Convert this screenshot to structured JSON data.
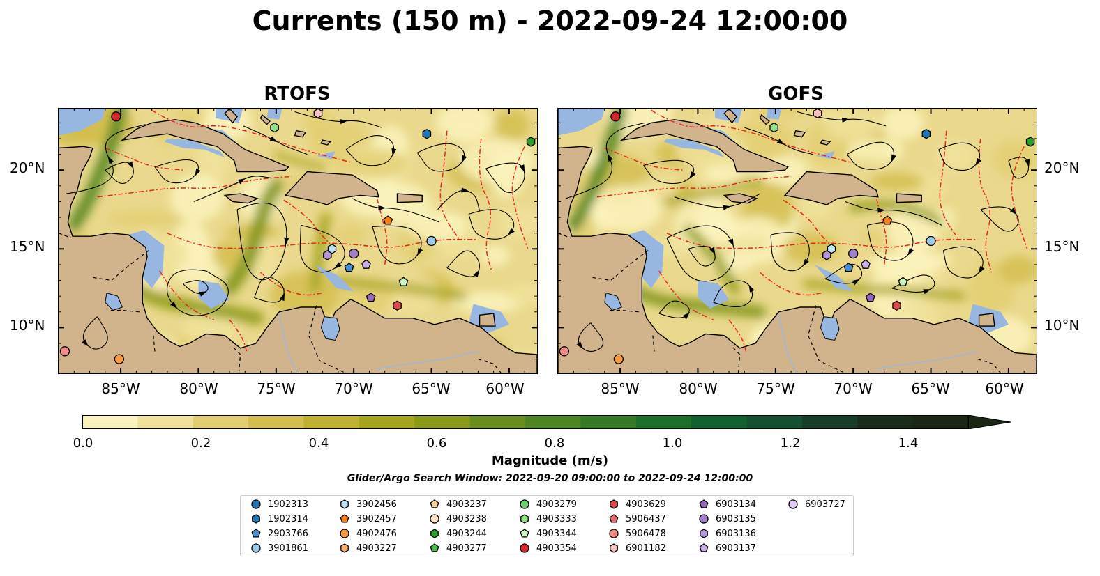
{
  "title": "Currents (150 m) - 2022-09-24 12:00:00",
  "panels": [
    {
      "title": "RTOFS",
      "variant": 0
    },
    {
      "title": "GOFS",
      "variant": 1
    }
  ],
  "lat_ticks": [
    "20°N",
    "15°N",
    "10°N"
  ],
  "lon_ticks": [
    "85°W",
    "80°W",
    "75°W",
    "70°W",
    "65°W",
    "60°W"
  ],
  "colorbar": {
    "label": "Magnitude (m/s)",
    "ticks": [
      "0.0",
      "0.2",
      "0.4",
      "0.6",
      "0.8",
      "1.0",
      "1.2",
      "1.4"
    ],
    "colors": [
      "#fbf3bd",
      "#f0e29a",
      "#e3cf72",
      "#d3be4f",
      "#bfb12f",
      "#a4a41d",
      "#89991a",
      "#6a8e1e",
      "#4f8422",
      "#347a25",
      "#1d6f2c",
      "#0f612e",
      "#145032",
      "#183d2b",
      "#1b2c1c",
      "#1c2617"
    ]
  },
  "search_window": "Glider/Argo Search Window: 2022-09-20 09:00:00 to 2022-09-24 12:00:00",
  "legend": [
    {
      "label": "1902313",
      "color": "#1f77b4",
      "marker": "circle"
    },
    {
      "label": "1902314",
      "color": "#1f77b4",
      "marker": "hexagon"
    },
    {
      "label": "2903766",
      "color": "#4b8fd0",
      "marker": "pentagon"
    },
    {
      "label": "3901861",
      "color": "#9ecae9",
      "marker": "circle"
    },
    {
      "label": "3902456",
      "color": "#bfe3f7",
      "marker": "hexagon"
    },
    {
      "label": "3902457",
      "color": "#ff7f0e",
      "marker": "pentagon"
    },
    {
      "label": "4902476",
      "color": "#fd9a3f",
      "marker": "circle"
    },
    {
      "label": "4903227",
      "color": "#ffb26b",
      "marker": "hexagon"
    },
    {
      "label": "4903237",
      "color": "#ffcf99",
      "marker": "pentagon"
    },
    {
      "label": "4903238",
      "color": "#ffe3c6",
      "marker": "circle"
    },
    {
      "label": "4903244",
      "color": "#2ca02c",
      "marker": "hexagon"
    },
    {
      "label": "4903277",
      "color": "#4cba4c",
      "marker": "pentagon"
    },
    {
      "label": "4903279",
      "color": "#6ccf6c",
      "marker": "circle"
    },
    {
      "label": "4903333",
      "color": "#98df8a",
      "marker": "hexagon"
    },
    {
      "label": "4903344",
      "color": "#c8f5c0",
      "marker": "pentagon"
    },
    {
      "label": "4903354",
      "color": "#d62728",
      "marker": "circle"
    },
    {
      "label": "4903629",
      "color": "#e04848",
      "marker": "hexagon"
    },
    {
      "label": "5906437",
      "color": "#ee6a6a",
      "marker": "pentagon"
    },
    {
      "label": "5906478",
      "color": "#f28b8b",
      "marker": "circle"
    },
    {
      "label": "6901182",
      "color": "#f8c0c0",
      "marker": "hexagon"
    },
    {
      "label": "6903134",
      "color": "#9467bd",
      "marker": "pentagon"
    },
    {
      "label": "6903135",
      "color": "#a17fc9",
      "marker": "circle"
    },
    {
      "label": "6903136",
      "color": "#b596da",
      "marker": "hexagon"
    },
    {
      "label": "6903137",
      "color": "#c9b0ea",
      "marker": "pentagon"
    },
    {
      "label": "6903727",
      "color": "#e2cdf6",
      "marker": "circle"
    }
  ],
  "floats": [
    {
      "id": "4903354",
      "lon": -85.3,
      "lat": 23.4
    },
    {
      "id": "6901182",
      "lon": -72.3,
      "lat": 23.6
    },
    {
      "id": "4903333",
      "lon": -75.1,
      "lat": 22.7
    },
    {
      "id": "1902314",
      "lon": -65.3,
      "lat": 22.3
    },
    {
      "id": "4903244",
      "lon": -58.6,
      "lat": 21.8
    },
    {
      "id": "3902457",
      "lon": -67.8,
      "lat": 16.8
    },
    {
      "id": "3901861",
      "lon": -65.0,
      "lat": 15.5
    },
    {
      "id": "3902456",
      "lon": -71.4,
      "lat": 15.0
    },
    {
      "id": "6903135",
      "lon": -70.0,
      "lat": 14.7
    },
    {
      "id": "6903136",
      "lon": -71.7,
      "lat": 14.6
    },
    {
      "id": "2903766",
      "lon": -70.3,
      "lat": 13.8
    },
    {
      "id": "6903137",
      "lon": -69.2,
      "lat": 14.0
    },
    {
      "id": "4903344",
      "lon": -66.8,
      "lat": 12.9
    },
    {
      "id": "6903134",
      "lon": -68.9,
      "lat": 11.9
    },
    {
      "id": "4903629",
      "lon": -67.2,
      "lat": 11.4
    },
    {
      "id": "5906478",
      "lon": -88.6,
      "lat": 8.5
    },
    {
      "id": "4902476",
      "lon": -85.1,
      "lat": 8.0
    }
  ]
}
